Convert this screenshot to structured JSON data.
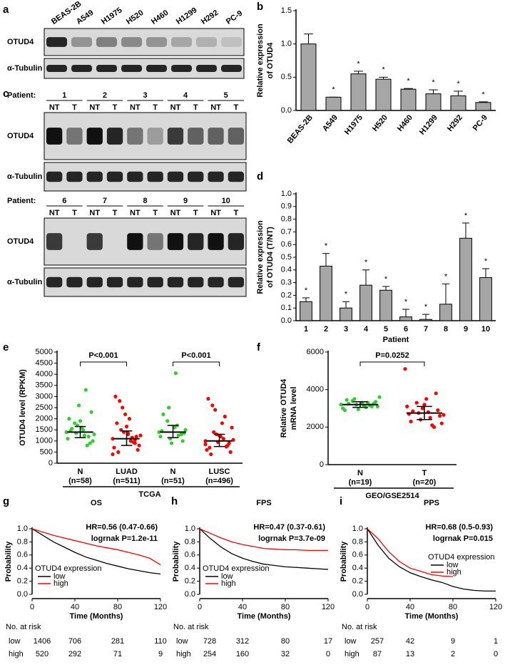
{
  "panels": [
    "a",
    "b",
    "c",
    "d",
    "e",
    "f",
    "g",
    "h",
    "i"
  ],
  "blot_a": {
    "lanes": [
      "BEAS-2B",
      "A549",
      "H1975",
      "H520",
      "H460",
      "H1299",
      "H292",
      "PC-9"
    ],
    "rows": [
      "OTUD4",
      "α-Tubulin"
    ]
  },
  "blot_c": {
    "label": "Patient:",
    "top_patients": [
      "1",
      "2",
      "3",
      "4",
      "5"
    ],
    "bottom_patients": [
      "6",
      "7",
      "8",
      "9",
      "10"
    ],
    "lane_labels": [
      "NT",
      "T"
    ],
    "rows": [
      "OTUD4",
      "α-Tubulin"
    ]
  },
  "chart_data": [
    {
      "type": "bar",
      "ylabel": [
        "Relative expression",
        "of OTUD4"
      ],
      "categories": [
        "BEAS-2B",
        "A549",
        "H1975",
        "H520",
        "H460",
        "H1299",
        "H292",
        "PC-9"
      ],
      "values": [
        1.0,
        0.2,
        0.55,
        0.47,
        0.32,
        0.25,
        0.22,
        0.12
      ],
      "errors": [
        0.15,
        0,
        0.04,
        0.03,
        0.01,
        0.06,
        0.07,
        0.01
      ],
      "annotations": [
        null,
        "*",
        "*",
        "*",
        "*",
        "*",
        "*",
        "*"
      ],
      "color": "#a6a6a6",
      "ylim": [
        0,
        1.5
      ],
      "yticks": [
        {
          "value": 0,
          "label": "0.0"
        },
        0.5,
        {
          "value": 1,
          "label": "1.0"
        },
        1.5
      ]
    },
    {
      "type": "bar",
      "ylabel": [
        "Relative expression",
        "of OTUD4 (T/NT)"
      ],
      "xlabel": "Patient",
      "categories": [
        "1",
        "2",
        "3",
        "4",
        "5",
        "6",
        "7",
        "8",
        "9",
        "10"
      ],
      "values": [
        0.15,
        0.43,
        0.1,
        0.28,
        0.24,
        0.03,
        0.01,
        0.13,
        0.65,
        0.34
      ],
      "errors": [
        0.03,
        0.1,
        0.05,
        0.12,
        0.03,
        0.06,
        0.04,
        0.16,
        0.12,
        0.07
      ],
      "annotations": [
        "*",
        "*",
        "*",
        "*",
        "*",
        "*",
        "*",
        "*",
        "*",
        "*"
      ],
      "color": "#a6a6a6",
      "ylim": [
        0,
        1
      ],
      "yticks": [
        {
          "value": 0,
          "label": "0.0"
        },
        0.1,
        0.2,
        0.3,
        0.4,
        0.5,
        0.6,
        0.7,
        0.8,
        0.9,
        {
          "value": 1,
          "label": "1.0"
        }
      ]
    },
    {
      "type": "strip",
      "ylabel": [
        "OTUD4 level (RPKM)"
      ],
      "group_label": "TCGA",
      "p_labels": [
        "P<0.001",
        "P<0.001"
      ],
      "ylim": [
        0,
        5000
      ],
      "yticks": [
        0,
        500,
        1000,
        1500,
        2000,
        2500,
        3000,
        3500,
        4000,
        4500,
        5000
      ],
      "series": [
        {
          "name": "N",
          "n_label": "(n=58)",
          "color": "#33cc33",
          "median": 1400,
          "q1": 1150,
          "q3": 1650,
          "values": [
            1400,
            1200,
            1600,
            1800,
            1100,
            900,
            1500,
            1350,
            2000,
            2300,
            1250,
            1700,
            1450,
            1000,
            3300,
            2600,
            1550,
            1300,
            800,
            1900
          ]
        },
        {
          "name": "LUAD",
          "n_label": "(n=511)",
          "color": "#ff0000",
          "median": 1100,
          "q1": 800,
          "q3": 1450,
          "values": [
            1100,
            900,
            1300,
            1500,
            700,
            1200,
            2000,
            2500,
            3000,
            600,
            1000,
            1400,
            1800,
            800,
            1150,
            2200,
            500,
            1250,
            950,
            1650,
            2800,
            400,
            1050,
            1350
          ]
        },
        {
          "name": "N",
          "n_label": "(n=51)",
          "color": "#33cc33",
          "median": 1400,
          "q1": 1150,
          "q3": 1700,
          "values": [
            1400,
            1300,
            1600,
            1900,
            1200,
            1000,
            4050,
            2500,
            1450,
            1350,
            1700,
            1100,
            2200,
            1500,
            1250,
            900
          ]
        },
        {
          "name": "LUSC",
          "n_label": "(n=496)",
          "color": "#ff0000",
          "median": 1000,
          "q1": 750,
          "q3": 1300,
          "values": [
            1000,
            800,
            1200,
            1400,
            600,
            900,
            1800,
            2400,
            2900,
            500,
            1100,
            1300,
            700,
            1600,
            2100,
            950,
            400,
            1050,
            750,
            1250,
            2600,
            850
          ]
        }
      ]
    },
    {
      "type": "strip",
      "ylabel": [
        "Relative OTUD4",
        "mRNA level"
      ],
      "group_label": "GEO/GSE2514",
      "p_labels": [
        "P=0.0252"
      ],
      "ylim": [
        0,
        6000
      ],
      "yticks": [
        0,
        2000,
        4000,
        6000
      ],
      "series": [
        {
          "name": "N",
          "n_label": "(n=19)",
          "color": "#33cc33",
          "median": 3200,
          "q1": 3050,
          "q3": 3350,
          "values": [
            3200,
            3100,
            3300,
            3400,
            3000,
            3250,
            3150,
            3500,
            2900,
            3350,
            3050,
            3200,
            3450,
            3100,
            3300,
            2950,
            3250,
            3600,
            3150
          ]
        },
        {
          "name": "T",
          "n_label": "(n=20)",
          "color": "#ff0000",
          "median": 2750,
          "q1": 2400,
          "q3": 3100,
          "values": [
            5100,
            3800,
            3500,
            3300,
            3100,
            2900,
            2800,
            2750,
            2700,
            2600,
            2500,
            2400,
            2300,
            2200,
            2100,
            3000,
            2850,
            2650,
            2000,
            3200
          ]
        }
      ]
    },
    {
      "type": "km",
      "title": "OS",
      "xlabel": "Time (Months)",
      "ylabel": "Probability",
      "annotations": [
        "HR=0.56 (0.47-0.66)",
        "logrnak P=1.2e-11"
      ],
      "legend_title": "OTUD4 expression",
      "legend": "lower left",
      "xlim": [
        0,
        120
      ],
      "xticks": [
        0,
        40,
        80,
        120
      ],
      "ylim": [
        0,
        1
      ],
      "yticks": [
        {
          "value": 0,
          "label": "0.0"
        },
        0.2,
        0.4,
        0.6,
        0.8,
        {
          "value": 1,
          "label": "1.0"
        }
      ],
      "series": [
        {
          "name": "low",
          "color": "#000000",
          "x": [
            0,
            10,
            20,
            30,
            40,
            50,
            60,
            70,
            80,
            90,
            100,
            110,
            120
          ],
          "values": [
            1,
            0.9,
            0.8,
            0.72,
            0.64,
            0.57,
            0.52,
            0.47,
            0.43,
            0.39,
            0.36,
            0.33,
            0.31
          ]
        },
        {
          "name": "high",
          "color": "#ff0000",
          "x": [
            0,
            10,
            20,
            30,
            40,
            50,
            60,
            70,
            80,
            90,
            100,
            110,
            120
          ],
          "values": [
            1,
            0.95,
            0.9,
            0.86,
            0.82,
            0.78,
            0.74,
            0.71,
            0.68,
            0.64,
            0.6,
            0.55,
            0.45
          ]
        }
      ],
      "risk_table": {
        "title": "No. at risk",
        "rows": [
          {
            "name": "low",
            "counts": [
              1406,
              706,
              281,
              110
            ]
          },
          {
            "name": "high",
            "counts": [
              520,
              292,
              71,
              9
            ]
          }
        ]
      }
    },
    {
      "type": "km",
      "title": "FPS",
      "xlabel": "Time (Months)",
      "ylabel": "Probability",
      "annotations": [
        "HR=0.47 (0.37-0.61)",
        "logrnak P=3.7e-09"
      ],
      "legend_title": "OTUD4 expression",
      "legend": "lower left",
      "xlim": [
        0,
        120
      ],
      "xticks": [
        0,
        40,
        80,
        120
      ],
      "ylim": [
        0,
        1
      ],
      "yticks": [
        {
          "value": 0,
          "label": "0.0"
        },
        0.2,
        0.4,
        0.6,
        0.8,
        {
          "value": 1,
          "label": "1.0"
        }
      ],
      "series": [
        {
          "name": "low",
          "color": "#000000",
          "x": [
            0,
            10,
            20,
            30,
            40,
            50,
            60,
            70,
            80,
            90,
            100,
            110,
            120
          ],
          "values": [
            1,
            0.85,
            0.72,
            0.62,
            0.55,
            0.5,
            0.46,
            0.44,
            0.42,
            0.41,
            0.4,
            0.39,
            0.38
          ]
        },
        {
          "name": "high",
          "color": "#ff0000",
          "x": [
            0,
            10,
            20,
            30,
            40,
            50,
            60,
            70,
            80,
            90,
            100,
            110,
            120
          ],
          "values": [
            1,
            0.93,
            0.86,
            0.8,
            0.76,
            0.73,
            0.7,
            0.69,
            0.68,
            0.68,
            0.67,
            0.67,
            0.67
          ]
        }
      ],
      "risk_table": {
        "title": "No. at risk",
        "rows": [
          {
            "name": "low",
            "counts": [
              728,
              312,
              80,
              17
            ]
          },
          {
            "name": "high",
            "counts": [
              254,
              160,
              32,
              0
            ]
          }
        ]
      }
    },
    {
      "type": "km",
      "title": "PPS",
      "xlabel": "Time (Months)",
      "ylabel": "Probability",
      "annotations": [
        "HR=0.68 (0.5-0.93)",
        "logrnak P=0.015"
      ],
      "legend_title": "OTUD4 expression",
      "legend": "right",
      "xlim": [
        0,
        120
      ],
      "xticks": [
        0,
        40,
        80,
        120
      ],
      "ylim": [
        0,
        1
      ],
      "yticks": [
        {
          "value": 0,
          "label": "0.0"
        },
        0.2,
        0.4,
        0.6,
        0.8,
        {
          "value": 1,
          "label": "1.0"
        }
      ],
      "series": [
        {
          "name": "low",
          "color": "#000000",
          "x": [
            0,
            10,
            20,
            30,
            40,
            50,
            60,
            70,
            80,
            90,
            100,
            110,
            120
          ],
          "values": [
            1,
            0.75,
            0.55,
            0.42,
            0.33,
            0.27,
            0.22,
            0.18,
            0.12,
            0.08,
            0.06,
            0.05,
            0.05
          ]
        },
        {
          "name": "high",
          "color": "#ff0000",
          "x": [
            0,
            10,
            20,
            30,
            40,
            50,
            60,
            70,
            80
          ],
          "values": [
            1,
            0.85,
            0.65,
            0.5,
            0.4,
            0.35,
            0.3,
            0.28,
            0.27
          ]
        }
      ],
      "risk_table": {
        "title": "No. at risk",
        "rows": [
          {
            "name": "low",
            "counts": [
              257,
              42,
              9,
              1
            ]
          },
          {
            "name": "high",
            "counts": [
              87,
              13,
              2,
              0
            ]
          }
        ]
      }
    }
  ]
}
